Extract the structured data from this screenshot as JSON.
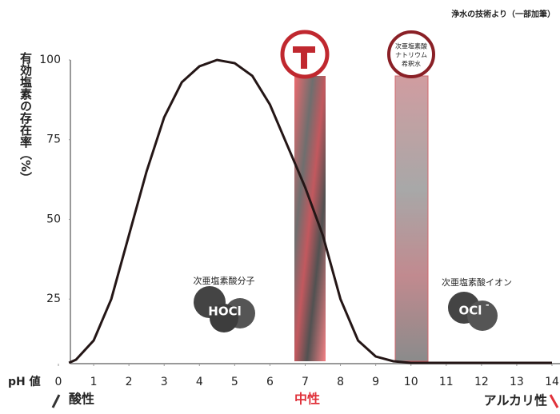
{
  "source": "浄水の技術より（一部加筆）",
  "chart_data": {
    "type": "line",
    "y_label": "有効塩素の存在率（%）",
    "x_label": "pH 値",
    "x": [
      0.3,
      0.5,
      1,
      1.5,
      2,
      2.5,
      3,
      3.5,
      4,
      4.5,
      5,
      5.5,
      6,
      6.5,
      7,
      7.5,
      8,
      8.5,
      9,
      9.5,
      10,
      11,
      12,
      13,
      14
    ],
    "series": [
      {
        "color": "#241616",
        "values": [
          5,
          6,
          12,
          25,
          45,
          65,
          82,
          93,
          98,
          100,
          99,
          95,
          86,
          73,
          60,
          45,
          25,
          12,
          7,
          5.5,
          5,
          5,
          5,
          5,
          5
        ]
      }
    ],
    "xlim": [
      0,
      14
    ],
    "xticks": [
      0,
      1,
      2,
      3,
      4,
      5,
      6,
      7,
      8,
      9,
      10,
      11,
      12,
      13,
      14
    ],
    "ylim": [
      5,
      100
    ],
    "yticks": [
      25,
      50,
      75,
      100
    ],
    "grid": false,
    "scale_labels": {
      "acid": "酸性",
      "neutral": "中性",
      "alkaline": "アルカリ性"
    },
    "hocl": {
      "name": "次亜塩素酸分子",
      "formula": "HOCl"
    },
    "ocl": {
      "name": "次亜塩素酸イオン",
      "formula": "OCl",
      "charge": "-"
    },
    "dilution": {
      "lines": [
        "次亜塩素酸",
        "ナトリウム",
        "希釈水"
      ]
    }
  }
}
